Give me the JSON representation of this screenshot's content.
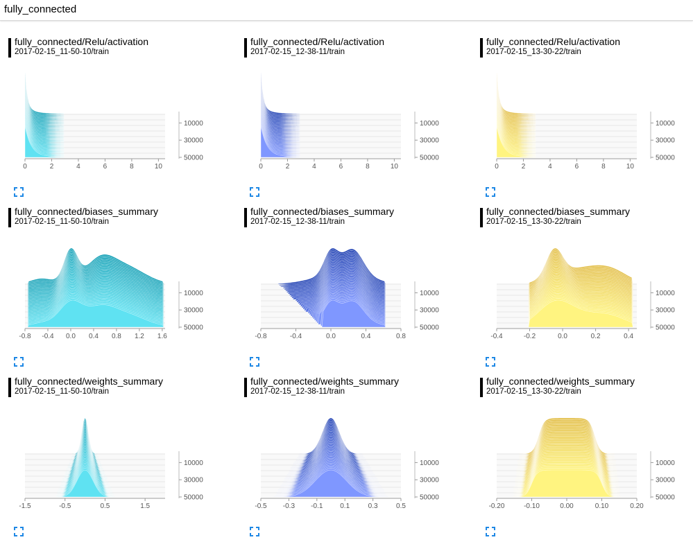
{
  "header": {
    "title": "fully_connected"
  },
  "icons": {
    "expand": "fullscreen-expand-icon"
  },
  "colors": {
    "run1": "#1aa3b8",
    "run2": "#2545b5",
    "run3": "#e3c04c",
    "light1": "#5fe2f2",
    "light2": "#7f97ff",
    "light3": "#fff480"
  },
  "chart_data": [
    {
      "type": "area",
      "tag": "fully_connected/Relu/activation",
      "run": "2017-02-15_11-50-10/train",
      "shape": "activation",
      "x_ticks": [
        "0",
        "2",
        "4",
        "6",
        "8",
        "10"
      ],
      "x_range": [
        0,
        10.5
      ],
      "y_ticks": [
        "10000",
        "30000",
        "50000"
      ],
      "y_range": [
        0,
        50000
      ]
    },
    {
      "type": "area",
      "tag": "fully_connected/Relu/activation",
      "run": "2017-02-15_12-38-11/train",
      "shape": "activation",
      "x_ticks": [
        "0",
        "2",
        "4",
        "6",
        "8",
        "10"
      ],
      "x_range": [
        0,
        10.5
      ],
      "y_ticks": [
        "10000",
        "30000",
        "50000"
      ],
      "y_range": [
        0,
        50000
      ]
    },
    {
      "type": "area",
      "tag": "fully_connected/Relu/activation",
      "run": "2017-02-15_13-30-22/train",
      "shape": "activation",
      "x_ticks": [
        "0",
        "2",
        "4",
        "6",
        "8",
        "10"
      ],
      "x_range": [
        0,
        10.5
      ],
      "y_ticks": [
        "10000",
        "30000",
        "50000"
      ],
      "y_range": [
        0,
        50000
      ]
    },
    {
      "type": "area",
      "tag": "fully_connected/biases_summary",
      "run": "2017-02-15_11-50-10/train",
      "shape": "bias1",
      "x_ticks": [
        "-0.8",
        "-0.4",
        "0.0",
        "0.4",
        "0.8",
        "1.2",
        "1.6"
      ],
      "x_range": [
        -0.8,
        1.65
      ],
      "y_ticks": [
        "10000",
        "30000",
        "50000"
      ],
      "y_range": [
        0,
        50000
      ]
    },
    {
      "type": "area",
      "tag": "fully_connected/biases_summary",
      "run": "2017-02-15_12-38-11/train",
      "shape": "bias2",
      "x_ticks": [
        "-0.8",
        "-0.4",
        "0.0",
        "0.4",
        "0.8"
      ],
      "x_range": [
        -0.8,
        0.8
      ],
      "y_ticks": [
        "10000",
        "30000",
        "50000"
      ],
      "y_range": [
        0,
        50000
      ]
    },
    {
      "type": "area",
      "tag": "fully_connected/biases_summary",
      "run": "2017-02-15_13-30-22/train",
      "shape": "bias3",
      "x_ticks": [
        "-0.4",
        "-0.2",
        "0.0",
        "0.2",
        "0.4"
      ],
      "x_range": [
        -0.4,
        0.45
      ],
      "y_ticks": [
        "10000",
        "30000",
        "50000"
      ],
      "y_range": [
        0,
        50000
      ]
    },
    {
      "type": "area",
      "tag": "fully_connected/weights_summary",
      "run": "2017-02-15_11-50-10/train",
      "shape": "weights1",
      "x_ticks": [
        "-1.5",
        "-0.5",
        "0.5",
        "1.5"
      ],
      "x_range": [
        -1.5,
        2.0
      ],
      "y_ticks": [
        "10000",
        "30000",
        "50000"
      ],
      "y_range": [
        0,
        50000
      ]
    },
    {
      "type": "area",
      "tag": "fully_connected/weights_summary",
      "run": "2017-02-15_12-38-11/train",
      "shape": "weights2",
      "x_ticks": [
        "-0.5",
        "-0.3",
        "-0.1",
        "0.1",
        "0.3",
        "0.5"
      ],
      "x_range": [
        -0.5,
        0.5
      ],
      "y_ticks": [
        "10000",
        "30000",
        "50000"
      ],
      "y_range": [
        0,
        50000
      ]
    },
    {
      "type": "area",
      "tag": "fully_connected/weights_summary",
      "run": "2017-02-15_13-30-22/train",
      "shape": "weights3",
      "x_ticks": [
        "-0.20",
        "-0.10",
        "0.00",
        "0.10",
        "0.20"
      ],
      "x_range": [
        -0.2,
        0.2
      ],
      "y_ticks": [
        "10000",
        "30000",
        "50000"
      ],
      "y_range": [
        0,
        50000
      ]
    }
  ]
}
